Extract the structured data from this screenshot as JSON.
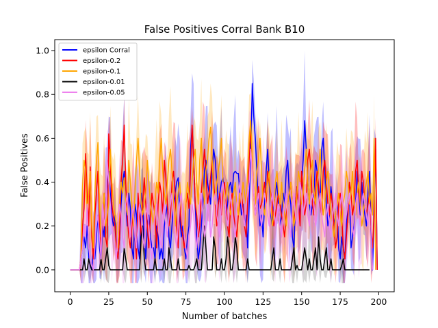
{
  "chart_data": {
    "type": "line",
    "title": "False Positives Corral Bank B10",
    "xlabel": "Number of batches",
    "ylabel": "False Positives",
    "xlim": [
      -10,
      210
    ],
    "ylim": [
      -0.1,
      1.05
    ],
    "xticks": [
      0,
      25,
      50,
      75,
      100,
      125,
      150,
      175,
      200
    ],
    "yticks": [
      0.0,
      0.2,
      0.4,
      0.6,
      0.8,
      1.0
    ],
    "xtick_labels": [
      "0",
      "25",
      "50",
      "75",
      "100",
      "125",
      "150",
      "175",
      "200"
    ],
    "ytick_labels": [
      "0.0",
      "0.2",
      "0.4",
      "0.6",
      "0.8",
      "1.0"
    ],
    "grid": false,
    "legend_position": "top-left",
    "x_start": 0,
    "x_step": 1,
    "series": [
      {
        "name": "epsilon Corral",
        "color": "#0000ff",
        "values": [
          0,
          0,
          0,
          0,
          0,
          0,
          0,
          0.05,
          0.1,
          0.15,
          0.1,
          0.2,
          0.05,
          0.02,
          0,
          0.1,
          0.05,
          0.15,
          0.25,
          0.1,
          0.05,
          0.2,
          0.15,
          0.3,
          0.4,
          0.45,
          0.35,
          0.25,
          0.2,
          0.25,
          0.1,
          0.05,
          0.15,
          0.3,
          0.4,
          0.45,
          0.3,
          0.2,
          0.35,
          0.28,
          0.1,
          0.05,
          0.3,
          0.25,
          0.1,
          0.05,
          0.35,
          0.3,
          0.15,
          0.05,
          0.2,
          0.25,
          0.15,
          0.1,
          0.1,
          0.05,
          0.2,
          0.15,
          0.05,
          0.1,
          0.05,
          0.2,
          0.25,
          0.3,
          0.15,
          0.1,
          0.2,
          0.3,
          0.35,
          0.4,
          0.42,
          0.25,
          0.15,
          0.2,
          0.1,
          0.05,
          0.15,
          0.2,
          0.55,
          0.65,
          0.5,
          0.3,
          0.15,
          0.05,
          0.1,
          0.2,
          0.3,
          0.45,
          0.5,
          0.4,
          0.35,
          0.3,
          0.45,
          0.55,
          0.5,
          0.4,
          0.3,
          0.35,
          0.4,
          0.42,
          0.35,
          0.25,
          0.3,
          0.38,
          0.4,
          0.35,
          0.44,
          0.45,
          0.44,
          0.44,
          0.35,
          0.25,
          0.3,
          0.2,
          0.25,
          0.1,
          0.3,
          0.5,
          0.85,
          0.7,
          0.6,
          0.45,
          0.3,
          0.2,
          0.25,
          0.15,
          0.3,
          0.45,
          0.55,
          0.4,
          0.25,
          0.2,
          0.3,
          0.35,
          0.4,
          0.3,
          0.2,
          0.25,
          0.35,
          0.3,
          0.45,
          0.5,
          0.35,
          0.3,
          0.15,
          0.1,
          0.3,
          0.38,
          0.3,
          0.25,
          0.4,
          0.5,
          0.68,
          0.55,
          0.4,
          0.3,
          0.25,
          0.3,
          0.35,
          0.5,
          0.45,
          0.35,
          0.3,
          0.55,
          0.6,
          0.45,
          0.3,
          0.2,
          0.25,
          0.38,
          0.3,
          0.2,
          0.25,
          0.3,
          0.1,
          0.05,
          0.15,
          0.1,
          0.05,
          0.2,
          0.3,
          0.35,
          0.1,
          0.15,
          0.2,
          0.3,
          0.45,
          0.35,
          0.25,
          0.4,
          0.3,
          0.25,
          0.2,
          0.35,
          0.45,
          0.2,
          0,
          0.3,
          0.55,
          0
        ],
        "band_color": "#0000ff"
      },
      {
        "name": "epsilon-0.2",
        "color": "#ff0000",
        "values": [
          0,
          0,
          0,
          0,
          0,
          0,
          0,
          0.05,
          0.2,
          0.28,
          0.53,
          0.35,
          0.2,
          0.47,
          0.15,
          0.05,
          0.25,
          0.35,
          0.45,
          0.2,
          0.1,
          0.22,
          0.35,
          0.15,
          0.1,
          0.62,
          0.5,
          0.3,
          0.24,
          0.2,
          0.1,
          0.05,
          0.15,
          0.4,
          0.5,
          0.66,
          0.4,
          0.25,
          0.15,
          0.1,
          0.2,
          0.28,
          0.15,
          0.05,
          0.35,
          0.25,
          0.15,
          0.3,
          0.42,
          0.3,
          0.2,
          0.1,
          0.25,
          0.35,
          0.3,
          0.25,
          0.1,
          0.3,
          0.4,
          0.35,
          0.25,
          0.5,
          0.42,
          0.3,
          0.2,
          0.25,
          0.4,
          0.45,
          0.35,
          0.2,
          0.1,
          0.3,
          0.2,
          0.15,
          0.1,
          0.3,
          0.35,
          0.28,
          0.45,
          0.66,
          0.5,
          0.3,
          0.25,
          0.15,
          0.2,
          0.35,
          0.45,
          0.55,
          0.45,
          0.3,
          0.35,
          0.42,
          0.5,
          0.4,
          0.3,
          0.2,
          0.3,
          0.35,
          0.25,
          0.35,
          0.4,
          0.3,
          0.2,
          0.15,
          0.3,
          0.35,
          0.25,
          0.2,
          0.15,
          0.25,
          0.3,
          0.35,
          0.28,
          0.2,
          0.15,
          0.3,
          0.48,
          0.65,
          0.5,
          0.35,
          0.25,
          0.3,
          0.38,
          0.28,
          0.3,
          0.35,
          0.4,
          0.3,
          0.45,
          0.4,
          0.35,
          0.3,
          0.2,
          0.25,
          0.3,
          0.35,
          0.3,
          0.25,
          0.2,
          0.15,
          0.25,
          0.3,
          0.35,
          0.4,
          0.3,
          0.2,
          0.3,
          0.38,
          0.3,
          0.2,
          0.45,
          0.35,
          0.25,
          0.3,
          0.5,
          0.55,
          0.45,
          0.3,
          0.25,
          0.35,
          0.45,
          0.38,
          0.3,
          0.25,
          0.45,
          0.5,
          0.4,
          0.3,
          0.25,
          0.35,
          0.3,
          0.2,
          0.1,
          0.15,
          0.3,
          0.35,
          0.25,
          0.1,
          0.05,
          0.15,
          0.25,
          0.4,
          0.35,
          0.25,
          0.3,
          0.45,
          0.5,
          0.35,
          0.3,
          0.45,
          0.4,
          0.3,
          0.25,
          0.3,
          0.35,
          0.2,
          0.1,
          0.25,
          0.6,
          0
        ],
        "band_color": "#ff0000"
      },
      {
        "name": "epsilon-0.1",
        "color": "#ffa500",
        "values": [
          0,
          0,
          0,
          0,
          0,
          0,
          0,
          0.05,
          0.38,
          0.5,
          0.45,
          0.25,
          0.35,
          0.45,
          0.2,
          0.1,
          0.35,
          0.5,
          0.58,
          0.3,
          0.15,
          0.25,
          0.35,
          0.2,
          0.25,
          0.3,
          0.55,
          0.4,
          0.3,
          0.25,
          0.2,
          0.1,
          0.3,
          0.4,
          0.35,
          0.42,
          0.3,
          0.25,
          0.5,
          0.4,
          0.3,
          0.2,
          0.35,
          0.5,
          0.6,
          0.45,
          0.3,
          0.25,
          0.3,
          0.35,
          0.5,
          0.4,
          0.3,
          0.25,
          0.2,
          0.3,
          0.4,
          0.35,
          0.5,
          0.6,
          0.45,
          0.35,
          0.3,
          0.4,
          0.5,
          0.55,
          0.45,
          0.3,
          0.2,
          0.3,
          0.35,
          0.4,
          0.3,
          0.25,
          0.15,
          0.3,
          0.4,
          0.35,
          0.3,
          0.4,
          0.5,
          0.55,
          0.4,
          0.3,
          0.5,
          0.6,
          0.4,
          0.3,
          0.45,
          0.5,
          0.6,
          0.65,
          0.5,
          0.35,
          0.3,
          0.4,
          0.45,
          0.5,
          0.6,
          0.4,
          0.3,
          0.35,
          0.4,
          0.3,
          0.25,
          0.3,
          0.35,
          0.4,
          0.3,
          0.25,
          0.35,
          0.3,
          0.4,
          0.35,
          0.3,
          0.45,
          0.6,
          0.68,
          0.5,
          0.35,
          0.3,
          0.45,
          0.5,
          0.6,
          0.45,
          0.3,
          0.25,
          0.35,
          0.4,
          0.45,
          0.3,
          0.2,
          0.25,
          0.4,
          0.45,
          0.35,
          0.3,
          0.4,
          0.3,
          0.25,
          0.2,
          0.3,
          0.35,
          0.4,
          0.3,
          0.2,
          0.25,
          0.35,
          0.45,
          0.4,
          0.3,
          0.35,
          0.45,
          0.55,
          0.4,
          0.3,
          0.45,
          0.5,
          0.35,
          0.3,
          0.4,
          0.45,
          0.55,
          0.35,
          0.25,
          0.3,
          0.4,
          0.45,
          0.35,
          0.25,
          0.2,
          0.15,
          0.25,
          0.3,
          0.35,
          0.25,
          0.2,
          0.3,
          0.35,
          0.45,
          0.4,
          0.3,
          0.35,
          0.45,
          0.3,
          0.25,
          0.35,
          0.4,
          0.3,
          0.2,
          0.25,
          0.35,
          0.4,
          0.45,
          0.3,
          0.35,
          0.25,
          0.6,
          0
        ],
        "band_color": "#ffa500"
      },
      {
        "name": "epsilon-0.01",
        "color": "#000000",
        "values": [
          0,
          0,
          0,
          0,
          0,
          0,
          0,
          0,
          0,
          0.05,
          0,
          0,
          0.05,
          0.02,
          0,
          0,
          0,
          0,
          0,
          0,
          0.05,
          0,
          0,
          0.05,
          0.1,
          0.02,
          0,
          0,
          0,
          0,
          0,
          0,
          0,
          0,
          0,
          0.1,
          0.05,
          0,
          0,
          0,
          0,
          0,
          0,
          0,
          0,
          0,
          0.15,
          0.2,
          0.05,
          0,
          0,
          0,
          0,
          0,
          0,
          0.05,
          0,
          0,
          0,
          0,
          0,
          0.05,
          0,
          0,
          0.1,
          0.05,
          0,
          0,
          0,
          0,
          0.05,
          0,
          0,
          0,
          0,
          0,
          0,
          0.02,
          0,
          0,
          0,
          0.02,
          0.05,
          0,
          0,
          0,
          0.1,
          0.2,
          0.1,
          0,
          0,
          0,
          0,
          0.15,
          0.1,
          0,
          0,
          0,
          0.05,
          0,
          0,
          0.05,
          0.15,
          0.1,
          0,
          0,
          0.05,
          0.15,
          0.1,
          0,
          0,
          0,
          0,
          0,
          0,
          0.05,
          0,
          0,
          0,
          0,
          0,
          0,
          0,
          0,
          0,
          0,
          0,
          0,
          0,
          0,
          0,
          0.05,
          0.1,
          0,
          0,
          0,
          0.05,
          0,
          0,
          0,
          0,
          0,
          0,
          0,
          0.05,
          0.1,
          0,
          0.02,
          0,
          0,
          0,
          0.05,
          0.1,
          0.05,
          0,
          0.05,
          0,
          0,
          0.05,
          0.1,
          0,
          0.15,
          0.05,
          0,
          0,
          0.05,
          0.1,
          0,
          0,
          0.05,
          0,
          0,
          0,
          0,
          0,
          0,
          0.02,
          0.05,
          0,
          0,
          0,
          0,
          0,
          0,
          0,
          0,
          0,
          0,
          0,
          0,
          0,
          0,
          0,
          0,
          0
        ],
        "band_color": "#555555"
      },
      {
        "name": "epsilon-0.05",
        "color": "#ee82ee",
        "values": [
          0,
          0,
          0,
          0,
          0,
          0,
          0,
          0.05,
          0.1,
          0.2,
          0.15,
          0.3,
          0.1,
          0.05,
          0.02,
          0,
          0.1,
          0.2,
          0.25,
          0.15,
          0.05,
          0.3,
          0.2,
          0.25,
          0.5,
          0.4,
          0.3,
          0.2,
          0.15,
          0.1,
          0.05,
          0.2,
          0.3,
          0.25,
          0.15,
          0.1,
          0.3,
          0.35,
          0.2,
          0.15,
          0.25,
          0.3,
          0.15,
          0.1,
          0.2,
          0.3,
          0.25,
          0.15,
          0.1,
          0.25,
          0.3,
          0.2,
          0.1,
          0.05,
          0.2,
          0.25,
          0.3,
          0.2,
          0.15,
          0.1,
          0.25,
          0.3,
          0.2,
          0.15,
          0.25,
          0.3,
          0.35,
          0.25,
          0.15,
          0.1,
          0.2,
          0.3,
          0.35,
          0.25,
          0.15,
          0.1,
          0.05,
          0.15,
          0.2,
          0.3,
          0.25,
          0.15,
          0.1,
          0.2,
          0.3,
          0.35,
          0.25,
          0.15,
          0.2,
          0.3,
          0.25,
          0.15,
          0.2,
          0.3,
          0.35,
          0.25,
          0.2,
          0.15,
          0.3,
          0.4,
          0.35,
          0.25,
          0.2,
          0.3,
          0.35,
          0.25,
          0.2,
          0.15,
          0.3,
          0.35,
          0.4,
          0.3,
          0.25,
          0.2,
          0.3,
          0.35,
          0.4,
          0.55,
          0.45,
          0.35,
          0.25,
          0.3,
          0.35,
          0.25,
          0.2,
          0.3,
          0.35,
          0.3,
          0.25,
          0.2,
          0.3,
          0.35,
          0.3,
          0.2,
          0.25,
          0.3,
          0.2,
          0.15,
          0.25,
          0.3,
          0.35,
          0.25,
          0.2,
          0.15,
          0.3,
          0.35,
          0.25,
          0.2,
          0.3,
          0.4,
          0.35,
          0.25,
          0.3,
          0.35,
          0.25,
          0.2,
          0.3,
          0.35,
          0.3,
          0.2,
          0.25,
          0.3,
          0.35,
          0.25,
          0.2,
          0.15,
          0.25,
          0.3,
          0.2,
          0.15,
          0.25,
          0.3,
          0.35,
          0.25,
          0.2,
          0.3,
          0.35,
          0.3,
          0.2,
          0.25,
          0.3,
          0.35,
          0.25,
          0.2,
          0.15,
          0.3,
          0.35,
          0.25,
          0.2,
          0.3,
          0.35,
          0.3,
          0.25,
          0.2,
          0.3,
          0.25,
          0
        ],
        "band_color": "#ee82ee"
      }
    ]
  }
}
